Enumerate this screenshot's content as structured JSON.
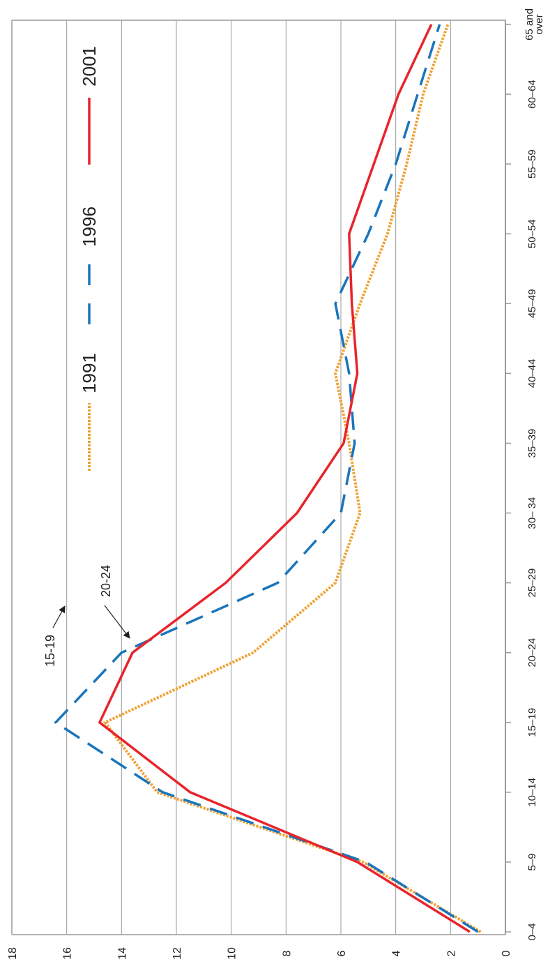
{
  "chart_data": {
    "type": "line",
    "orientation": "rotated-90",
    "categories": [
      "0–4",
      "5–9",
      "10–14",
      "15–19",
      "20–24",
      "25–29",
      "30– 34",
      "35–39",
      "40–44",
      "45–49",
      "50–54",
      "55–59",
      "60–64",
      "65 and over"
    ],
    "category_lines": [
      [
        "0–4"
      ],
      [
        "5–9"
      ],
      [
        "10–14"
      ],
      [
        "15–19"
      ],
      [
        "20–24"
      ],
      [
        "25–29"
      ],
      [
        "30– 34"
      ],
      [
        "35–39"
      ],
      [
        "40–44"
      ],
      [
        "45–49"
      ],
      [
        "50–54"
      ],
      [
        "55–59"
      ],
      [
        "60–64"
      ],
      [
        "65 and",
        "over"
      ]
    ],
    "ylim": [
      0,
      18
    ],
    "yticks": [
      0,
      2,
      4,
      6,
      8,
      10,
      12,
      14,
      16,
      18
    ],
    "grid": true,
    "legend": "inside",
    "series": [
      {
        "name": "1991",
        "style": "dotted",
        "color": "#f0a030",
        "values": [
          0.9,
          5.2,
          12.7,
          14.6,
          9.2,
          6.2,
          5.3,
          5.7,
          6.2,
          5.3,
          4.3,
          3.6,
          3.0,
          2.1
        ]
      },
      {
        "name": "1996",
        "style": "dashed",
        "color": "#1a75bb",
        "values": [
          1.0,
          5.1,
          12.5,
          16.4,
          14.0,
          8.3,
          6.0,
          5.5,
          5.7,
          6.2,
          5.0,
          4.0,
          3.2,
          2.4
        ]
      },
      {
        "name": "2001",
        "style": "solid",
        "color": "#e8242c",
        "values": [
          1.3,
          5.4,
          11.5,
          14.8,
          13.6,
          10.2,
          7.6,
          5.9,
          5.4,
          5.6,
          5.7,
          4.8,
          3.9,
          2.7
        ]
      }
    ],
    "annotations": [
      {
        "text": "15-19",
        "series": "1996",
        "category": "15–19"
      },
      {
        "text": "20-24",
        "series": "2001",
        "category": "20–24"
      }
    ]
  }
}
